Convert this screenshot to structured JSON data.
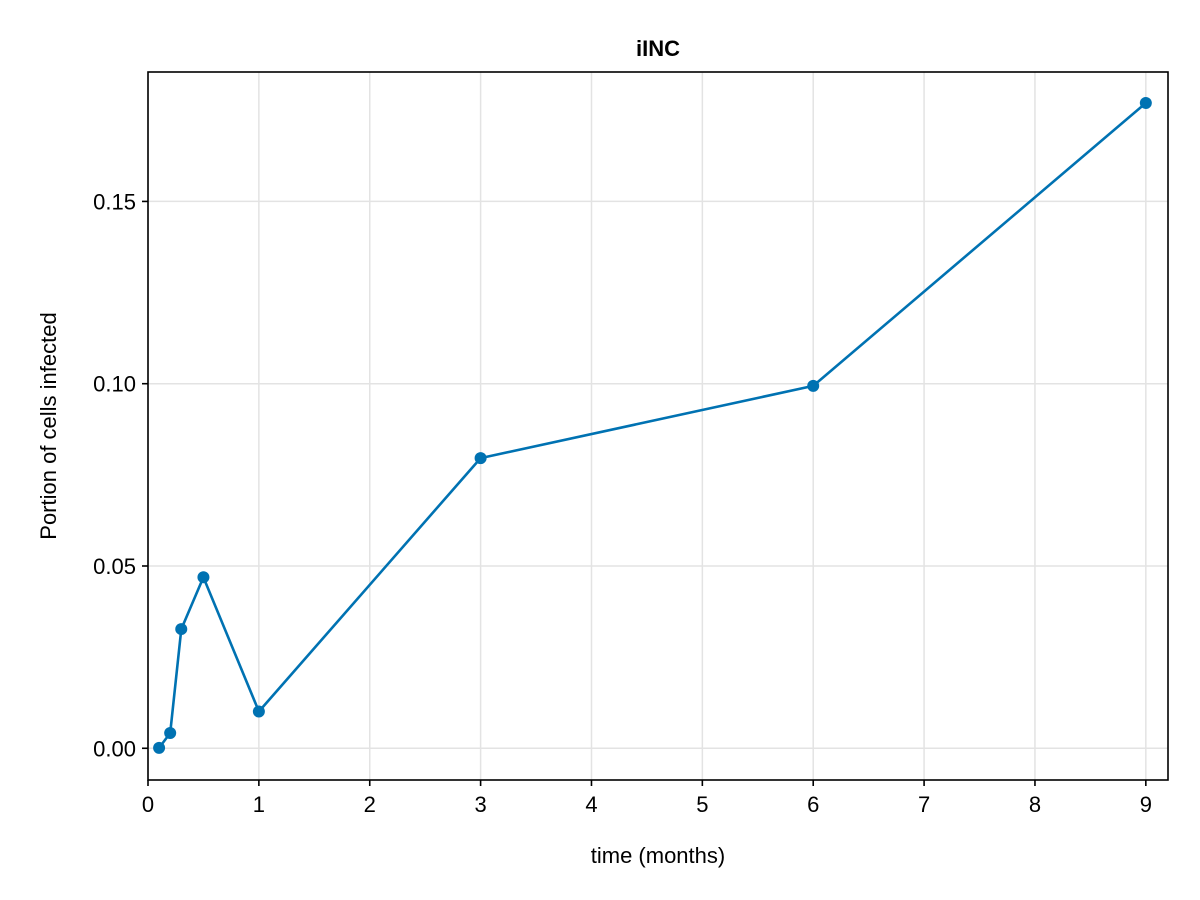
{
  "chart_data": {
    "type": "line",
    "title": "iINC",
    "xlabel": "time (months)",
    "ylabel": "Portion of cells infected",
    "xlim": [
      0,
      9.2
    ],
    "ylim": [
      -0.0087,
      0.1855
    ],
    "xticks": [
      0,
      1,
      2,
      3,
      4,
      5,
      6,
      7,
      8,
      9
    ],
    "yticks": [
      0.0,
      0.05,
      0.1,
      0.15
    ],
    "ytick_labels": [
      "0.00",
      "0.05",
      "0.10",
      "0.15"
    ],
    "grid": true,
    "markers": true,
    "color": "#0072B2",
    "series": [
      {
        "x": [
          0.1,
          0.2,
          0.3,
          0.5,
          1,
          3,
          6,
          9
        ],
        "y": [
          0.0001,
          0.0042,
          0.0327,
          0.0469,
          0.0101,
          0.0796,
          0.0994,
          0.177
        ]
      }
    ]
  }
}
